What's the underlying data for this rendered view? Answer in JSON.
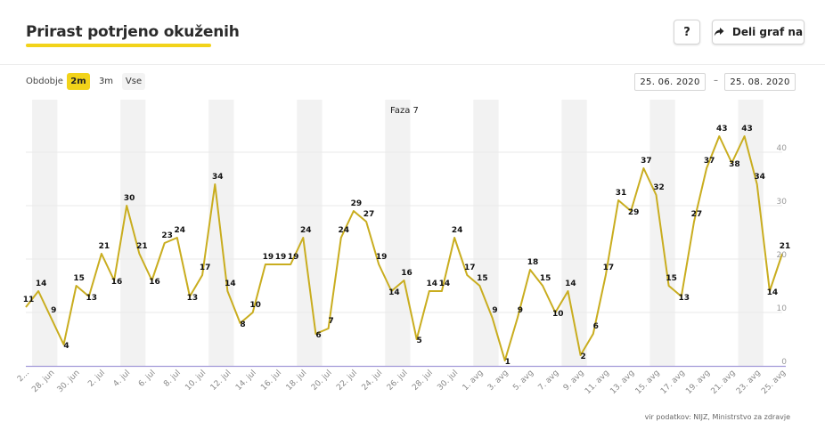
{
  "header": {
    "title": "Prirast potrjeno okuženih",
    "help_label": "?",
    "share_label": "Deli graf na",
    "share_icon": "share-arrow-icon"
  },
  "controls": {
    "period_label": "Obdobje",
    "period_options": [
      "2m",
      "3m",
      "Vse"
    ],
    "active_period": "2m",
    "date_from": "25. 06. 2020",
    "date_separator": "–",
    "date_to": "25. 08. 2020"
  },
  "colors": {
    "accent": "#f2d31a",
    "line": "#c9ad1f",
    "weekend_band": "#f2f2f2",
    "grid": "#e9e9e9",
    "baseline": "#a29ad8",
    "axis_text": "#888888"
  },
  "source_text": "vir podatkov: NIJZ, Ministrstvo za zdravje",
  "chart_data": {
    "type": "line",
    "annotation": "Faza 7",
    "x_tick_labels": [
      "2...",
      "28. jun",
      "30. jun",
      "2. jul",
      "4. jul",
      "6. jul",
      "8. jul",
      "10. jul",
      "12. jul",
      "14. jul",
      "16. jul",
      "18. jul",
      "20. jul",
      "22. jul",
      "24. jul",
      "26. jul",
      "28. jul",
      "30. jul",
      "1. avg",
      "3. avg",
      "5. avg",
      "7. avg",
      "9. avg",
      "11. avg",
      "13. avg",
      "15. avg",
      "17. avg",
      "19. avg",
      "21. avg",
      "23. avg",
      "25. avg"
    ],
    "y_ticks": [
      0,
      10,
      20,
      30,
      40
    ],
    "ylim": [
      0,
      50
    ],
    "grid": true,
    "values": [
      11,
      14,
      9,
      4,
      15,
      13,
      21,
      16,
      30,
      21,
      16,
      23,
      24,
      13,
      17,
      34,
      14,
      8,
      10,
      19,
      19,
      19,
      24,
      6,
      7,
      24,
      29,
      27,
      19,
      14,
      16,
      5,
      14,
      14,
      24,
      17,
      15,
      9,
      1,
      9,
      18,
      15,
      10,
      14,
      2,
      6,
      17,
      31,
      29,
      37,
      32,
      15,
      13,
      27,
      37,
      43,
      38,
      43,
      34,
      14,
      21
    ],
    "series": [
      {
        "values": [
          11,
          14,
          9,
          4,
          15,
          13,
          21,
          16,
          30,
          21,
          16,
          23,
          24,
          13,
          17,
          34,
          14,
          8,
          10,
          19,
          19,
          19,
          24,
          6,
          7,
          24,
          29,
          27,
          19,
          14,
          16,
          5,
          14,
          14,
          24,
          17,
          15,
          9,
          1,
          9,
          18,
          15,
          10,
          14,
          2,
          6,
          17,
          31,
          29,
          37,
          32,
          15,
          13,
          27,
          37,
          43,
          38,
          43,
          34,
          14,
          21
        ]
      }
    ],
    "weekend_day_indices": [
      [
        1,
        2
      ],
      [
        8,
        9
      ],
      [
        15,
        16
      ],
      [
        22,
        23
      ],
      [
        29,
        30
      ],
      [
        36,
        37
      ],
      [
        43,
        44
      ],
      [
        50,
        51
      ],
      [
        57,
        58
      ]
    ]
  }
}
